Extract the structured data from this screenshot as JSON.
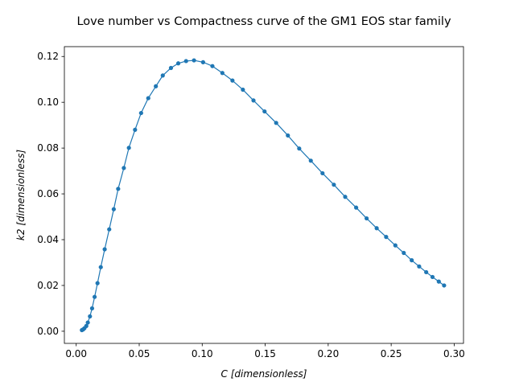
{
  "chart_data": {
    "type": "line",
    "title": "Love number vs Compactness curve of the GM1 EOS star family",
    "xlabel_var": "C",
    "xlabel_unit": "[dimensionless]",
    "ylabel_var": "k2",
    "ylabel_unit": "[dimensionless]",
    "xlim": [
      -0.0094,
      0.3074
    ],
    "ylim": [
      -0.0053,
      0.1243
    ],
    "x_ticks": [
      0.0,
      0.05,
      0.1,
      0.15,
      0.2,
      0.25,
      0.3
    ],
    "x_tick_labels": [
      "0.00",
      "0.05",
      "0.10",
      "0.15",
      "0.20",
      "0.25",
      "0.30"
    ],
    "y_ticks": [
      0.0,
      0.02,
      0.04,
      0.06,
      0.08,
      0.1,
      0.12
    ],
    "y_tick_labels": [
      "0.00",
      "0.02",
      "0.04",
      "0.06",
      "0.08",
      "0.10",
      "0.12"
    ],
    "grid": false,
    "legend": false,
    "series": [
      {
        "color": "#1f77b4",
        "marker": "circle",
        "points": [
          [
            0.0045,
            0.0005
          ],
          [
            0.0055,
            0.0008
          ],
          [
            0.0065,
            0.0013
          ],
          [
            0.008,
            0.0023
          ],
          [
            0.0092,
            0.0038
          ],
          [
            0.0109,
            0.0065
          ],
          [
            0.0126,
            0.01
          ],
          [
            0.0146,
            0.015
          ],
          [
            0.0169,
            0.021
          ],
          [
            0.0195,
            0.028
          ],
          [
            0.0226,
            0.0358
          ],
          [
            0.0262,
            0.0445
          ],
          [
            0.0298,
            0.0533
          ],
          [
            0.0333,
            0.0622
          ],
          [
            0.0378,
            0.0713
          ],
          [
            0.0418,
            0.0801
          ],
          [
            0.0467,
            0.088
          ],
          [
            0.0515,
            0.0953
          ],
          [
            0.0572,
            0.1018
          ],
          [
            0.0632,
            0.107
          ],
          [
            0.0687,
            0.1117
          ],
          [
            0.0752,
            0.115
          ],
          [
            0.081,
            0.117
          ],
          [
            0.0872,
            0.118
          ],
          [
            0.0935,
            0.1183
          ],
          [
            0.1007,
            0.1175
          ],
          [
            0.1081,
            0.1158
          ],
          [
            0.116,
            0.1128
          ],
          [
            0.124,
            0.1095
          ],
          [
            0.1323,
            0.1055
          ],
          [
            0.1407,
            0.1008
          ],
          [
            0.1495,
            0.096
          ],
          [
            0.1587,
            0.091
          ],
          [
            0.168,
            0.0855
          ],
          [
            0.177,
            0.0798
          ],
          [
            0.1862,
            0.0745
          ],
          [
            0.1955,
            0.069
          ],
          [
            0.2045,
            0.064
          ],
          [
            0.2135,
            0.0587
          ],
          [
            0.2222,
            0.054
          ],
          [
            0.2305,
            0.0493
          ],
          [
            0.2385,
            0.045
          ],
          [
            0.246,
            0.0412
          ],
          [
            0.2533,
            0.0375
          ],
          [
            0.26,
            0.0342
          ],
          [
            0.2663,
            0.031
          ],
          [
            0.2722,
            0.0283
          ],
          [
            0.2778,
            0.0258
          ],
          [
            0.2828,
            0.0237
          ],
          [
            0.2878,
            0.0217
          ],
          [
            0.292,
            0.02
          ]
        ]
      }
    ]
  }
}
